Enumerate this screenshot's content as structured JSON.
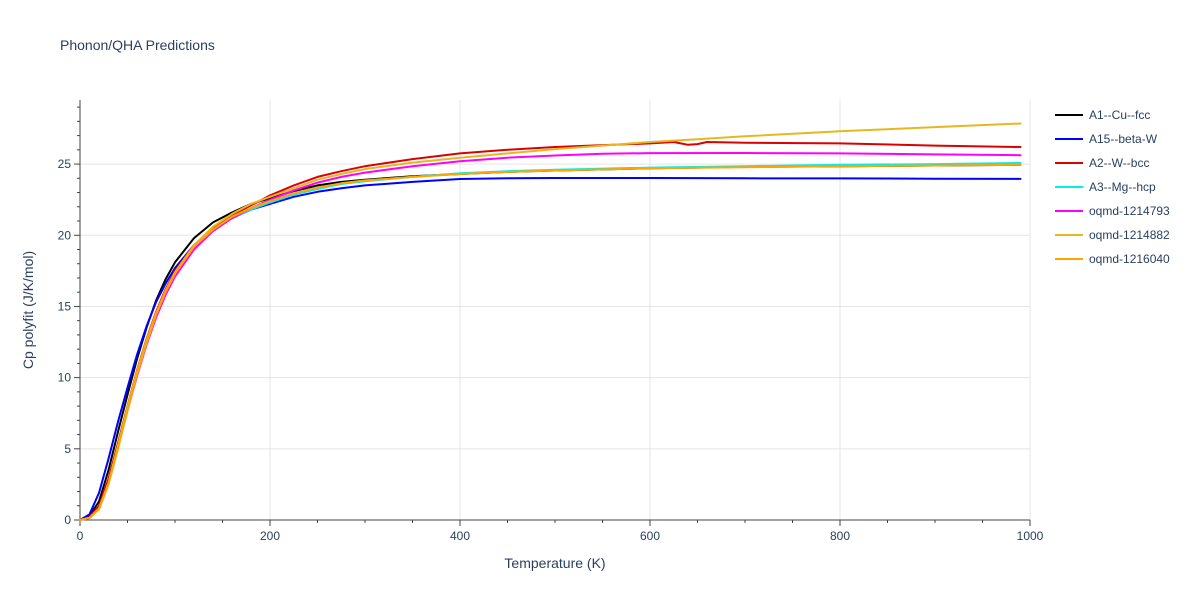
{
  "chart_data": {
    "type": "line",
    "title": "Phonon/QHA Predictions",
    "xlabel": "Temperature (K)",
    "ylabel": "Cp polyfit (J/K/mol)",
    "xlim": [
      0,
      1000
    ],
    "ylim": [
      0,
      29.5
    ],
    "x_ticks": [
      0,
      200,
      400,
      600,
      800,
      1000
    ],
    "y_ticks": [
      0,
      5,
      10,
      15,
      20,
      25
    ],
    "grid": true,
    "legend_position": "right",
    "series": [
      {
        "name": "A1--Cu--fcc",
        "color": "#000000",
        "x": [
          0,
          10,
          20,
          30,
          40,
          50,
          60,
          70,
          80,
          90,
          100,
          120,
          140,
          160,
          180,
          200,
          225,
          250,
          275,
          300,
          350,
          400,
          450,
          500,
          600,
          700,
          800,
          900,
          990
        ],
        "y": [
          0,
          0.3,
          1.3,
          3.5,
          6.2,
          8.8,
          11.3,
          13.5,
          15.4,
          16.9,
          18.1,
          19.8,
          20.9,
          21.6,
          22.2,
          22.6,
          23.1,
          23.5,
          23.75,
          23.9,
          24.15,
          24.3,
          24.45,
          24.55,
          24.7,
          24.8,
          24.85,
          24.9,
          24.95
        ]
      },
      {
        "name": "A15--beta-W",
        "color": "#0000ff",
        "x": [
          0,
          10,
          20,
          30,
          40,
          50,
          60,
          70,
          80,
          90,
          100,
          120,
          140,
          160,
          180,
          200,
          225,
          250,
          275,
          300,
          350,
          400,
          450,
          500,
          600,
          700,
          800,
          900,
          990
        ],
        "y": [
          0,
          0.4,
          1.9,
          4.3,
          6.9,
          9.3,
          11.6,
          13.6,
          15.3,
          16.6,
          17.7,
          19.3,
          20.4,
          21.2,
          21.8,
          22.2,
          22.7,
          23.05,
          23.3,
          23.5,
          23.75,
          23.95,
          24.0,
          24.02,
          24.02,
          24.0,
          23.99,
          23.97,
          23.96
        ]
      },
      {
        "name": "A2--W--bcc",
        "color": "#dd0000",
        "x": [
          0,
          10,
          20,
          30,
          40,
          50,
          60,
          70,
          80,
          90,
          100,
          120,
          140,
          160,
          180,
          200,
          225,
          250,
          275,
          300,
          350,
          400,
          450,
          500,
          600,
          625,
          640,
          650,
          660,
          700,
          800,
          900,
          990
        ],
        "y": [
          0,
          0.2,
          1.0,
          2.9,
          5.4,
          8.0,
          10.5,
          12.7,
          14.6,
          16.2,
          17.5,
          19.3,
          20.5,
          21.4,
          22.1,
          22.8,
          23.5,
          24.1,
          24.5,
          24.85,
          25.35,
          25.75,
          26.0,
          26.2,
          26.45,
          26.55,
          26.35,
          26.4,
          26.55,
          26.5,
          26.45,
          26.3,
          26.2
        ]
      },
      {
        "name": "A3--Mg--hcp",
        "color": "#00eeee",
        "x": [
          0,
          10,
          20,
          30,
          40,
          50,
          60,
          70,
          80,
          90,
          100,
          120,
          140,
          160,
          180,
          200,
          225,
          250,
          275,
          300,
          350,
          400,
          450,
          500,
          600,
          700,
          800,
          900,
          990
        ],
        "y": [
          0,
          0.15,
          0.8,
          2.6,
          5.2,
          7.9,
          10.4,
          12.6,
          14.5,
          16.0,
          17.3,
          19.1,
          20.3,
          21.2,
          21.8,
          22.3,
          22.85,
          23.25,
          23.6,
          23.8,
          24.1,
          24.35,
          24.5,
          24.6,
          24.75,
          24.85,
          24.95,
          25.0,
          25.08
        ]
      },
      {
        "name": "oqmd-1214793",
        "color": "#ff00ff",
        "x": [
          0,
          10,
          20,
          30,
          40,
          50,
          60,
          70,
          80,
          90,
          100,
          120,
          140,
          160,
          180,
          200,
          225,
          250,
          275,
          300,
          350,
          400,
          450,
          500,
          550,
          600,
          700,
          800,
          900,
          990
        ],
        "y": [
          0,
          0.15,
          0.8,
          2.6,
          5.1,
          7.7,
          10.1,
          12.3,
          14.2,
          15.8,
          17.1,
          19.0,
          20.3,
          21.2,
          21.9,
          22.5,
          23.15,
          23.7,
          24.1,
          24.4,
          24.85,
          25.2,
          25.45,
          25.6,
          25.72,
          25.77,
          25.78,
          25.75,
          25.68,
          25.62
        ]
      },
      {
        "name": "oqmd-1214882",
        "color": "#e6b820",
        "x": [
          0,
          10,
          20,
          30,
          40,
          50,
          60,
          70,
          80,
          90,
          100,
          120,
          140,
          160,
          180,
          200,
          225,
          250,
          275,
          300,
          350,
          400,
          450,
          500,
          550,
          600,
          650,
          700,
          800,
          900,
          990
        ],
        "y": [
          0,
          0.15,
          0.8,
          2.6,
          5.2,
          7.9,
          10.4,
          12.6,
          14.5,
          16.1,
          17.4,
          19.3,
          20.6,
          21.5,
          22.2,
          22.7,
          23.3,
          23.9,
          24.3,
          24.65,
          25.1,
          25.45,
          25.75,
          26.05,
          26.3,
          26.55,
          26.75,
          26.95,
          27.3,
          27.6,
          27.85
        ]
      },
      {
        "name": "oqmd-1216040",
        "color": "#ffa500",
        "x": [
          0,
          10,
          20,
          30,
          40,
          50,
          60,
          70,
          80,
          90,
          100,
          120,
          140,
          160,
          180,
          200,
          225,
          250,
          275,
          300,
          350,
          400,
          450,
          500,
          600,
          700,
          800,
          900,
          990
        ],
        "y": [
          0,
          0.15,
          0.75,
          2.5,
          5.0,
          7.7,
          10.2,
          12.4,
          14.4,
          16.0,
          17.3,
          19.2,
          20.4,
          21.3,
          21.9,
          22.4,
          22.95,
          23.35,
          23.65,
          23.85,
          24.1,
          24.3,
          24.45,
          24.55,
          24.7,
          24.78,
          24.85,
          24.9,
          24.95
        ]
      }
    ]
  }
}
